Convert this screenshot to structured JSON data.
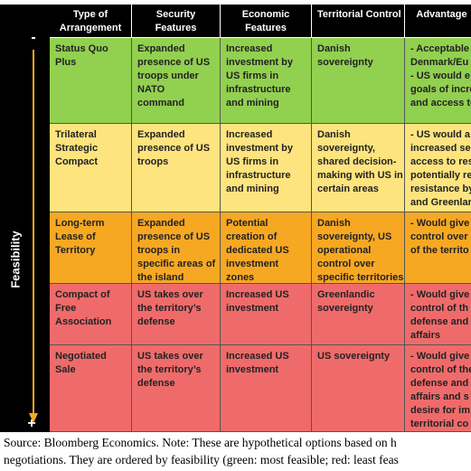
{
  "side": {
    "label": "Feasibility",
    "top": "-",
    "bottom": "+"
  },
  "table": {
    "headers": [
      "Type of\nArrangement",
      "Security\nFeatures",
      "Economic\nFeatures",
      "Territorial Control",
      "Advantage"
    ],
    "rows": [
      [
        "Status Quo\nPlus",
        "Expanded\npresence of US\ntroops under\nNATO\ncommand",
        "Increased\ninvestment by\nUS firms in\ninfrastructure\nand mining",
        "Danish\nsovereignty",
        "- Acceptable\nDenmark/Eu\n- US would e\ngoals of incre\nand access to"
      ],
      [
        "Trilateral\nStrategic\nCompact",
        "Expanded\npresence of US\ntroops",
        "Increased\ninvestment by\nUS firms in\ninfrastructure\nand mining",
        "Danish\nsovereignty,\nshared decision-\nmaking with US in\ncertain areas",
        "- US would a\nincreased se\naccess to res\npotentially re\nresistance by\nand Greenlan"
      ],
      [
        "Long-term\nLease of\nTerritory",
        "Expanded\npresence of US\ntroops in\nspecific areas of\nthe island",
        "Potential\ncreation of\ndedicated US\ninvestment\nzones",
        "Danish\nsovereignty, US\noperational\ncontrol over\nspecific territories",
        "- Would give\ncontrol over\nof the territo"
      ],
      [
        "Compact of\nFree\nAssociation",
        "US takes over\nthe territory’s\ndefense",
        "Increased US\ninvestment",
        "Greenlandic\nsovereignty",
        "- Would give\ncontrol of th\ndefense and\naffairs"
      ],
      [
        "Negotiated\nSale",
        "US takes over\nthe territory’s\ndefense",
        "Increased US\ninvestment",
        "US sovereignty",
        "- Would give\ncontrol of the\ndefense and\naffairs and s\ndesire for im\nterritorial co"
      ]
    ]
  },
  "note": [
    "Source: Bloomberg Economics. Note: These are hypothetical options based on h",
    "negotiations. They are ordered by feasibility (green: most feasible; red: least feas"
  ]
}
